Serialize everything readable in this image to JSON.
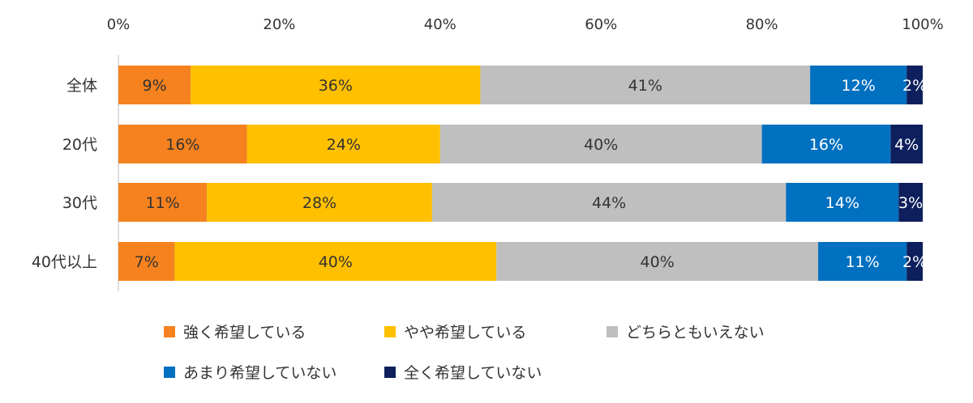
{
  "chart_data": {
    "type": "bar",
    "orientation": "horizontal",
    "stacked": "percent",
    "categories": [
      "全体",
      "20代",
      "30代",
      "40代以上"
    ],
    "series": [
      {
        "name": "強く希望している",
        "values": [
          9,
          16,
          11,
          7
        ],
        "labels": [
          "9%",
          "16%",
          "11%",
          "7%"
        ],
        "color": "#f5821f",
        "label_color": "#333333"
      },
      {
        "name": "やや希望している",
        "values": [
          36,
          24,
          28,
          40
        ],
        "labels": [
          "36%",
          "24%",
          "28%",
          "40%"
        ],
        "color": "#ffc000",
        "label_color": "#333333"
      },
      {
        "name": "どちらともいえない",
        "values": [
          41,
          40,
          44,
          40
        ],
        "labels": [
          "41%",
          "40%",
          "44%",
          "40%"
        ],
        "color": "#bfbfbf",
        "label_color": "#333333"
      },
      {
        "name": "あまり希望していない",
        "values": [
          12,
          16,
          14,
          11
        ],
        "labels": [
          "12%",
          "16%",
          "14%",
          "11%"
        ],
        "color": "#0070c0",
        "label_color": "#ffffff"
      },
      {
        "name": "全く希望していない",
        "values": [
          2,
          4,
          3,
          2
        ],
        "labels": [
          "2%",
          "4%",
          "3%",
          "2%"
        ],
        "color": "#0d1f5c",
        "label_color": "#ffffff"
      }
    ],
    "xlim": [
      0,
      100
    ],
    "x_ticks": [
      "0%",
      "20%",
      "40%",
      "60%",
      "80%",
      "100%"
    ],
    "x_axis_position": "top",
    "legend_position": "bottom",
    "grid": false
  }
}
